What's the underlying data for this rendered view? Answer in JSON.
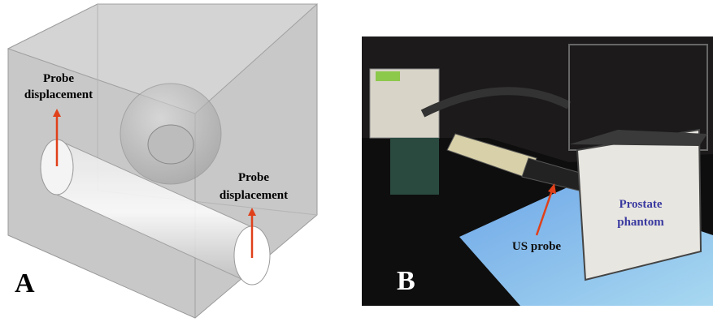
{
  "panels": [
    {
      "label": "A",
      "annotations": [
        {
          "lines": [
            "Probe",
            "displacement"
          ]
        },
        {
          "lines": [
            "Probe",
            "displacement"
          ]
        }
      ]
    },
    {
      "label": "B",
      "annotations": [
        {
          "lines": [
            "US probe"
          ]
        },
        {
          "lines": [
            "Prostate",
            "phantom"
          ]
        }
      ]
    }
  ]
}
